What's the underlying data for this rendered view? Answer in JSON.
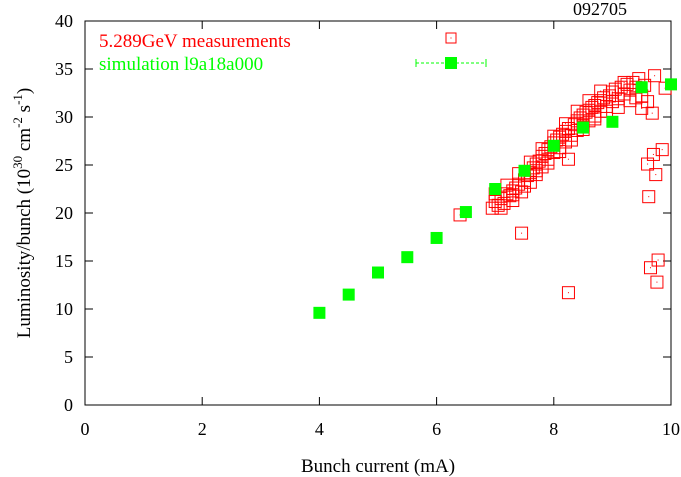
{
  "chart_data": {
    "type": "scatter",
    "corner_tag": "092705",
    "xlabel": "Bunch current (mA)",
    "ylabel_main": "Luminosity/bunch (10",
    "ylabel_exp1": "30",
    "ylabel_units": " cm",
    "ylabel_exp2": "-2",
    "ylabel_s": " s",
    "ylabel_exp3": "-1",
    "ylabel_close": ")",
    "xlim": [
      0,
      10
    ],
    "ylim": [
      0,
      40
    ],
    "x_ticks": [
      "0",
      "2",
      "4",
      "6",
      "8",
      "10"
    ],
    "y_ticks": [
      "0",
      "5",
      "10",
      "15",
      "20",
      "25",
      "30",
      "35",
      "40"
    ],
    "legend_position": "top-left",
    "series": [
      {
        "name": "5.289GeV measurements",
        "color": "#ff0000",
        "marker": "open-square-dot",
        "points": [
          [
            6.4,
            19.8
          ],
          [
            6.95,
            20.5
          ],
          [
            7.0,
            21.2
          ],
          [
            7.05,
            20.8
          ],
          [
            7.1,
            21.5
          ],
          [
            7.15,
            21.0
          ],
          [
            7.2,
            22.0
          ],
          [
            7.25,
            21.8
          ],
          [
            7.3,
            22.3
          ],
          [
            7.3,
            21.3
          ],
          [
            7.35,
            22.6
          ],
          [
            7.4,
            23.0
          ],
          [
            7.45,
            22.2
          ],
          [
            7.45,
            17.9
          ],
          [
            7.5,
            23.4
          ],
          [
            7.55,
            23.9
          ],
          [
            7.6,
            24.2
          ],
          [
            7.6,
            23.2
          ],
          [
            7.65,
            24.7
          ],
          [
            7.7,
            24.0
          ],
          [
            7.7,
            25.1
          ],
          [
            7.75,
            25.4
          ],
          [
            7.8,
            24.8
          ],
          [
            7.8,
            25.9
          ],
          [
            7.85,
            26.2
          ],
          [
            7.9,
            25.6
          ],
          [
            7.9,
            26.6
          ],
          [
            7.95,
            26.9
          ],
          [
            8.0,
            26.3
          ],
          [
            8.0,
            27.3
          ],
          [
            8.05,
            27.6
          ],
          [
            8.1,
            26.8
          ],
          [
            8.1,
            27.9
          ],
          [
            8.15,
            28.2
          ],
          [
            8.2,
            27.4
          ],
          [
            8.2,
            28.5
          ],
          [
            8.25,
            28.8
          ],
          [
            8.25,
            25.6
          ],
          [
            8.25,
            11.7
          ],
          [
            8.3,
            28.1
          ],
          [
            8.35,
            29.2
          ],
          [
            8.4,
            28.6
          ],
          [
            8.4,
            29.6
          ],
          [
            8.45,
            29.9
          ],
          [
            8.5,
            29.1
          ],
          [
            8.5,
            30.2
          ],
          [
            8.55,
            30.5
          ],
          [
            8.6,
            29.6
          ],
          [
            8.6,
            30.7
          ],
          [
            8.65,
            31.0
          ],
          [
            8.7,
            30.1
          ],
          [
            8.7,
            31.2
          ],
          [
            8.75,
            31.5
          ],
          [
            8.8,
            30.6
          ],
          [
            8.8,
            31.7
          ],
          [
            8.85,
            32.0
          ],
          [
            8.9,
            31.1
          ],
          [
            8.95,
            32.2
          ],
          [
            9.0,
            31.6
          ],
          [
            9.0,
            32.6
          ],
          [
            9.05,
            32.9
          ],
          [
            9.1,
            31.9
          ],
          [
            9.15,
            33.1
          ],
          [
            9.2,
            32.4
          ],
          [
            9.25,
            33.4
          ],
          [
            9.3,
            32.8
          ],
          [
            9.35,
            33.6
          ],
          [
            9.4,
            33.1
          ],
          [
            9.45,
            34.0
          ],
          [
            9.5,
            32.2
          ],
          [
            9.55,
            33.3
          ],
          [
            9.6,
            31.6
          ],
          [
            9.6,
            25.1
          ],
          [
            9.62,
            21.7
          ],
          [
            9.65,
            14.3
          ],
          [
            9.68,
            30.4
          ],
          [
            9.7,
            26.1
          ],
          [
            9.72,
            34.3
          ],
          [
            9.74,
            24.0
          ],
          [
            9.76,
            12.8
          ],
          [
            9.78,
            15.1
          ],
          [
            9.85,
            26.6
          ],
          [
            9.9,
            33.0
          ],
          [
            7.0,
            22.0
          ],
          [
            7.2,
            22.9
          ],
          [
            7.4,
            24.1
          ],
          [
            7.6,
            25.3
          ],
          [
            7.8,
            26.7
          ],
          [
            8.0,
            28.0
          ],
          [
            8.2,
            29.3
          ],
          [
            8.4,
            30.6
          ],
          [
            8.6,
            31.7
          ],
          [
            8.8,
            32.7
          ],
          [
            7.1,
            20.5
          ],
          [
            7.3,
            21.9
          ],
          [
            7.5,
            22.8
          ],
          [
            7.7,
            24.4
          ],
          [
            7.9,
            25.2
          ],
          [
            8.1,
            26.4
          ],
          [
            8.3,
            27.6
          ],
          [
            8.5,
            28.7
          ],
          [
            8.7,
            29.8
          ],
          [
            8.9,
            30.6
          ],
          [
            9.1,
            31.0
          ],
          [
            9.3,
            31.7
          ],
          [
            9.5,
            30.9
          ],
          [
            9.2,
            33.6
          ],
          [
            9.4,
            32.0
          ]
        ]
      },
      {
        "name": "simulation l9a18a000",
        "color": "#00ff00",
        "marker": "filled-square",
        "points": [
          [
            4.0,
            9.6
          ],
          [
            4.5,
            11.5
          ],
          [
            5.0,
            13.8
          ],
          [
            5.5,
            15.4
          ],
          [
            6.0,
            17.4
          ],
          [
            6.5,
            20.1
          ],
          [
            7.0,
            22.5
          ],
          [
            7.5,
            24.4
          ],
          [
            8.0,
            27.0
          ],
          [
            8.5,
            28.9
          ],
          [
            9.0,
            29.5
          ],
          [
            9.5,
            33.1
          ],
          [
            10.0,
            33.4
          ]
        ]
      }
    ]
  }
}
